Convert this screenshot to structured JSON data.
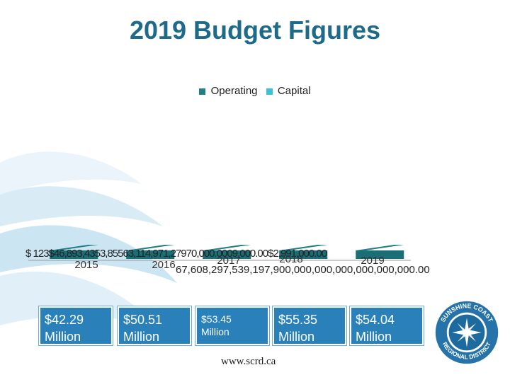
{
  "title": "2019 Budget Figures",
  "legend": {
    "operating": "Operating",
    "capital": "Capital"
  },
  "overflow_text": {
    "line1": "$ 123$46,893,4353,85563,114,971,27970,000.0009,000.00$2,991,000.00",
    "line2": "67,608,297,539,197,900,000,000,000,000,000,000.00"
  },
  "colors": {
    "operating": "#1f7f86",
    "capital": "#3cc2d8",
    "title": "#1d6a8a",
    "box": "#2a80b9"
  },
  "chart_data": {
    "type": "bar",
    "title": "2019 Budget Figures",
    "categories": [
      "2015",
      "2016",
      "2017",
      "2018",
      "2019"
    ],
    "series": [
      {
        "name": "Operating",
        "values": [
          null,
          null,
          null,
          null,
          null
        ]
      },
      {
        "name": "Capital",
        "values": [
          null,
          null,
          null,
          null,
          null
        ]
      }
    ],
    "legend_position": "top-center",
    "totals": [
      {
        "year": "2015",
        "amount": "$42.29",
        "unit": "Million"
      },
      {
        "year": "2016",
        "amount": "$50.51",
        "unit": "Million"
      },
      {
        "year": "2017",
        "amount": "$53.45",
        "unit": "Million"
      },
      {
        "year": "2018",
        "amount": "$55.35",
        "unit": "Million"
      },
      {
        "year": "2019",
        "amount": "$54.04",
        "unit": "Million"
      }
    ]
  },
  "footer": {
    "url": "www.scrd.ca"
  },
  "logo": {
    "text": "SUNSHINE COAST REGIONAL DISTRICT",
    "icon": "star-compass-icon"
  }
}
